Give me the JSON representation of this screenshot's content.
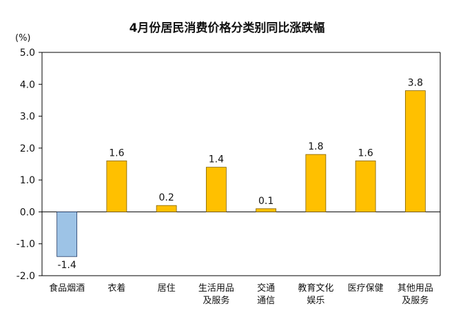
{
  "chart_data": {
    "type": "bar",
    "title": "4月份居民消费价格分类别同比涨跌幅",
    "ylabel": "(%)",
    "ylim": [
      -2.0,
      5.0
    ],
    "yticks": [
      "5.0",
      "4.0",
      "3.0",
      "2.0",
      "1.0",
      "0.0",
      "-1.0",
      "-2.0"
    ],
    "ytick_values": [
      5,
      4,
      3,
      2,
      1,
      0,
      -1,
      -2
    ],
    "categories": [
      [
        "食品烟酒"
      ],
      [
        "衣着"
      ],
      [
        "居住"
      ],
      [
        "生活用品",
        "及服务"
      ],
      [
        "交通",
        "通信"
      ],
      [
        "教育文化",
        "娱乐"
      ],
      [
        "医疗保健"
      ],
      [
        "其他用品",
        "及服务"
      ]
    ],
    "values": [
      -1.4,
      1.6,
      0.2,
      1.4,
      0.1,
      1.8,
      1.6,
      3.8
    ],
    "value_labels": [
      "-1.4",
      "1.6",
      "0.2",
      "1.4",
      "0.1",
      "1.8",
      "1.6",
      "3.8"
    ],
    "grid": false,
    "colors": {
      "positive": "#FFC000",
      "positive_edge": "#7F6000",
      "negative": "#9DC3E6",
      "negative_edge": "#1F3864",
      "axis": "#000000"
    }
  }
}
